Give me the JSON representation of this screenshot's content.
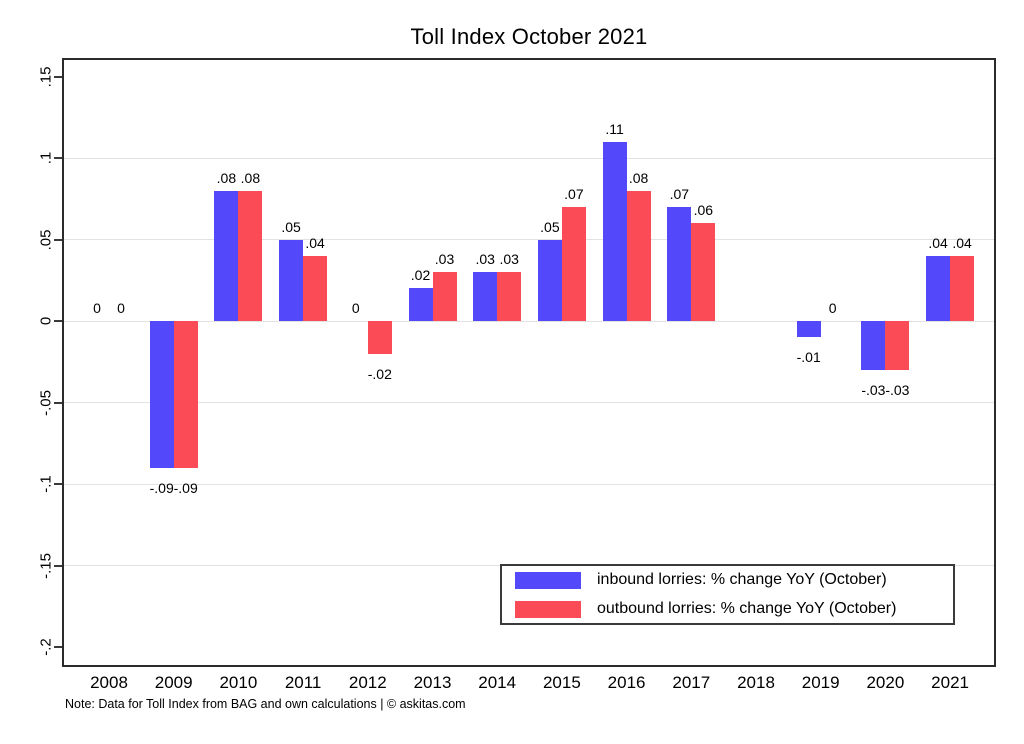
{
  "title": "Toll Index October 2021",
  "note": "Note: Data for Toll Index from BAG and own calculations | © askitas.com",
  "colors": {
    "inbound": "#5349fb",
    "outbound": "#fb4b57",
    "grid": "#e2e2e2",
    "axis": "#2b2b2b"
  },
  "y_axis": {
    "tick_labels": [
      ".15",
      ".1",
      ".05",
      "0",
      "-.05",
      "-.1",
      "-.15",
      "-.2"
    ],
    "tick_values": [
      0.15,
      0.1,
      0.05,
      0,
      -0.05,
      -0.1,
      -0.15,
      -0.2
    ],
    "gridline_values": [
      0.1,
      0.05,
      0,
      -0.05,
      -0.1,
      -0.15
    ]
  },
  "legend": {
    "items": [
      {
        "label": "inbound lorries: % change YoY (October)",
        "color": "#5349fb"
      },
      {
        "label": "outbound lorries: % change YoY (October)",
        "color": "#fb4b57"
      }
    ]
  },
  "chart_data": {
    "type": "bar",
    "title": "Toll Index October 2021",
    "categories": [
      "2008",
      "2009",
      "2010",
      "2011",
      "2012",
      "2013",
      "2014",
      "2015",
      "2016",
      "2017",
      "2018",
      "2019",
      "2020",
      "2021"
    ],
    "series": [
      {
        "name": "inbound lorries: % change YoY (October)",
        "color": "#5349fb",
        "values": [
          0,
          -0.09,
          0.08,
          0.05,
          0,
          0.02,
          0.03,
          0.05,
          0.11,
          0.07,
          null,
          -0.01,
          -0.03,
          0.04
        ],
        "labels": [
          "0",
          "-.09",
          ".08",
          ".05",
          "0",
          ".02",
          ".03",
          ".05",
          ".11",
          ".07",
          null,
          "-.01",
          "-.03",
          ".04"
        ]
      },
      {
        "name": "outbound lorries: % change YoY (October)",
        "color": "#fb4b57",
        "values": [
          0,
          -0.09,
          0.08,
          0.04,
          -0.02,
          0.03,
          0.03,
          0.07,
          0.08,
          0.06,
          null,
          0,
          -0.03,
          0.04
        ],
        "labels": [
          "0",
          "-.09",
          ".08",
          ".04",
          "-.02",
          ".03",
          ".03",
          ".07",
          ".08",
          ".06",
          null,
          "0",
          "-.03",
          ".04"
        ]
      }
    ],
    "ylim": [
      -0.2,
      0.15
    ],
    "xlabel": "",
    "ylabel": "",
    "grid": "horizontal",
    "legend_position": "inside-bottom-right"
  }
}
